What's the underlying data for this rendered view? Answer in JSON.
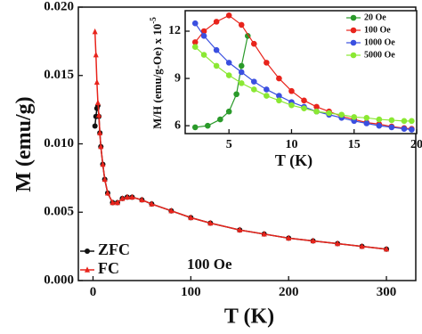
{
  "chart_data": [
    {
      "type": "line",
      "xlabel": "T (K)",
      "ylabel": "M (emu/g)",
      "annotation": "100 Oe",
      "xlim": [
        -15,
        330
      ],
      "ylim": [
        0,
        0.02
      ],
      "xticks": [
        0,
        100,
        200,
        300
      ],
      "yticks": [
        {
          "value": 0,
          "label": "0.000"
        },
        {
          "value": 0.005,
          "label": "0.005"
        },
        {
          "value": 0.01,
          "label": "0.010"
        },
        {
          "value": 0.015,
          "label": "0.015"
        },
        {
          "value": 0.02,
          "label": "0.020"
        }
      ],
      "legend": "lower-left",
      "grid": false,
      "x": [
        2,
        3,
        4,
        5,
        6,
        7,
        8,
        10,
        12,
        15,
        20,
        25,
        30,
        35,
        40,
        50,
        60,
        80,
        100,
        120,
        150,
        175,
        200,
        225,
        250,
        275,
        300
      ],
      "series": [
        {
          "name": "ZFC",
          "color": "#111111",
          "marker": "circle",
          "values": [
            0.0113,
            0.012,
            0.0126,
            0.0128,
            0.012,
            0.0108,
            0.0098,
            0.0085,
            0.0074,
            0.0064,
            0.0057,
            0.0057,
            0.006,
            0.0061,
            0.0061,
            0.0059,
            0.0056,
            0.0051,
            0.0046,
            0.0042,
            0.0037,
            0.0034,
            0.0031,
            0.0029,
            0.0027,
            0.0025,
            0.0023
          ]
        },
        {
          "name": "FC",
          "color": "#e8241c",
          "marker": "triangle",
          "values": [
            0.0182,
            0.0165,
            0.0145,
            0.013,
            0.0121,
            0.0108,
            0.0098,
            0.0085,
            0.0074,
            0.0064,
            0.0057,
            0.0057,
            0.006,
            0.0061,
            0.0061,
            0.0059,
            0.0056,
            0.0051,
            0.0046,
            0.0042,
            0.0037,
            0.0034,
            0.0031,
            0.0029,
            0.0027,
            0.0025,
            0.0023
          ]
        }
      ]
    },
    {
      "type": "line",
      "xlabel": "T (K)",
      "ylabel": "M/H (emu/g-Oe) x 10",
      "ylabel_exponent": "-5",
      "xlim": [
        1.5,
        20
      ],
      "ylim": [
        5.5,
        13.3
      ],
      "xticks": [
        5,
        10,
        15,
        20
      ],
      "yticks": [
        6,
        9,
        12
      ],
      "legend": "upper-right",
      "grid": false,
      "series": [
        {
          "name": "20 Oe",
          "color": "#2a9a2a",
          "marker": "circle",
          "x": [
            2.3,
            3.3,
            4.3,
            5.0,
            5.6,
            6.0,
            6.5
          ],
          "values": [
            5.9,
            6.0,
            6.4,
            6.9,
            8.0,
            9.8,
            11.7
          ]
        },
        {
          "name": "100 Oe",
          "color": "#e8241c",
          "marker": "circle",
          "x": [
            2.3,
            3,
            4,
            5,
            6,
            7,
            8,
            9,
            10,
            11,
            12,
            13,
            14,
            15,
            16,
            17,
            18,
            19,
            19.6
          ],
          "values": [
            11.3,
            12.0,
            12.6,
            13.0,
            12.4,
            11.2,
            10.0,
            9.0,
            8.2,
            7.6,
            7.2,
            6.9,
            6.6,
            6.4,
            6.2,
            6.1,
            5.95,
            5.85,
            5.8
          ]
        },
        {
          "name": "1000 Oe",
          "color": "#3a4fe0",
          "marker": "circle",
          "x": [
            2.3,
            3,
            4,
            5,
            6,
            7,
            8,
            9,
            10,
            11,
            12,
            13,
            14,
            15,
            16,
            17,
            18,
            19,
            19.6
          ],
          "values": [
            12.5,
            11.7,
            10.8,
            10.0,
            9.4,
            8.8,
            8.3,
            7.9,
            7.5,
            7.2,
            6.9,
            6.7,
            6.5,
            6.3,
            6.15,
            6.0,
            5.9,
            5.8,
            5.75
          ]
        },
        {
          "name": "5000 Oe",
          "color": "#8ae832",
          "marker": "circle",
          "x": [
            2.3,
            3,
            4,
            5,
            6,
            7,
            8,
            9,
            10,
            11,
            12,
            13,
            14,
            15,
            16,
            17,
            18,
            19,
            19.6
          ],
          "values": [
            11.0,
            10.5,
            9.8,
            9.2,
            8.7,
            8.3,
            7.9,
            7.6,
            7.3,
            7.1,
            6.9,
            6.8,
            6.7,
            6.55,
            6.5,
            6.4,
            6.35,
            6.3,
            6.3
          ]
        }
      ]
    }
  ]
}
